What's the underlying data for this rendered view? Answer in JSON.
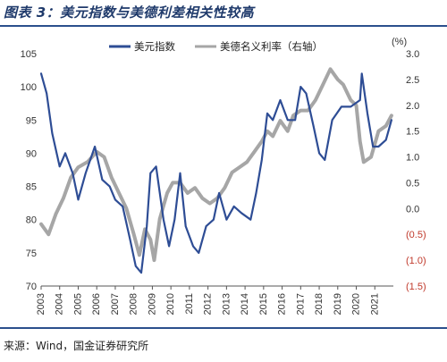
{
  "figure": {
    "title": "图表 3：美元指数与美德利差相关性较高",
    "source": "来源：Wind，国金证券研究所"
  },
  "colors": {
    "usd_index": "#2e4d95",
    "spread": "#a6a6a6",
    "negative_tick": "#c0392b",
    "rule": "#2b4f8c"
  },
  "chart_data": {
    "type": "line",
    "title": "",
    "xlabel": "",
    "ylabel": "",
    "right_unit": "(%)",
    "x_ticks": [
      "2003",
      "2004",
      "2005",
      "2006",
      "2007",
      "2008",
      "2009",
      "2010",
      "2011",
      "2012",
      "2013",
      "2014",
      "2015",
      "2016",
      "2017",
      "2018",
      "2019",
      "2020",
      "2021"
    ],
    "y_left": {
      "lim": [
        70,
        105
      ],
      "ticks": [
        "105",
        "100",
        "95",
        "90",
        "85",
        "80",
        "75",
        "70"
      ]
    },
    "y_right": {
      "lim": [
        -1.5,
        3.0
      ],
      "ticks": [
        "3.0",
        "2.5",
        "2.0",
        "1.5",
        "1.0",
        "0.5",
        "0.0",
        "(0.5)",
        "(1.0)",
        "(1.5)"
      ]
    },
    "grid": false,
    "legend": "top",
    "series": [
      {
        "name": "美元指数",
        "axis": "left",
        "x": [
          2003.0,
          2003.3,
          2003.6,
          2004.0,
          2004.3,
          2004.7,
          2005.0,
          2005.4,
          2005.9,
          2006.3,
          2006.7,
          2007.0,
          2007.4,
          2007.8,
          2008.1,
          2008.4,
          2008.7,
          2008.9,
          2009.2,
          2009.6,
          2009.9,
          2010.2,
          2010.5,
          2010.8,
          2011.2,
          2011.5,
          2011.9,
          2012.3,
          2012.6,
          2013.0,
          2013.4,
          2013.8,
          2014.3,
          2014.6,
          2014.9,
          2015.2,
          2015.5,
          2015.9,
          2016.3,
          2016.7,
          2017.0,
          2017.3,
          2017.7,
          2018.0,
          2018.3,
          2018.7,
          2019.2,
          2019.7,
          2020.2,
          2020.3,
          2020.6,
          2020.9,
          2021.2,
          2021.6,
          2021.9
        ],
        "y": [
          102,
          99,
          93,
          88,
          90,
          87,
          83,
          87,
          91,
          86,
          85,
          83,
          82,
          77,
          73,
          72,
          79,
          87,
          88,
          80,
          76,
          80,
          87,
          79,
          76,
          75,
          79,
          80,
          84,
          80,
          82,
          81,
          80,
          84,
          89,
          96,
          95,
          98,
          95,
          95,
          100,
          99,
          94,
          90,
          89,
          95,
          97,
          97,
          98,
          102,
          96,
          91,
          91,
          92,
          95
        ]
      },
      {
        "name": "美德名义利率（右轴）",
        "axis": "right",
        "x": [
          2003.0,
          2003.4,
          2003.8,
          2004.2,
          2004.6,
          2005.0,
          2005.5,
          2006.0,
          2006.4,
          2006.8,
          2007.2,
          2007.6,
          2008.0,
          2008.3,
          2008.6,
          2008.9,
          2009.1,
          2009.4,
          2009.8,
          2010.1,
          2010.5,
          2010.9,
          2011.3,
          2011.7,
          2012.1,
          2012.5,
          2012.9,
          2013.3,
          2013.7,
          2014.1,
          2014.5,
          2014.9,
          2015.2,
          2015.5,
          2015.9,
          2016.3,
          2016.6,
          2017.0,
          2017.4,
          2017.8,
          2018.2,
          2018.6,
          2019.0,
          2019.3,
          2019.7,
          2020.0,
          2020.2,
          2020.4,
          2020.8,
          2021.2,
          2021.6,
          2021.9
        ],
        "y": [
          -0.3,
          -0.5,
          -0.1,
          0.2,
          0.6,
          0.8,
          0.9,
          1.1,
          1.0,
          0.6,
          0.3,
          0.0,
          -0.5,
          -0.9,
          -0.4,
          -0.6,
          -1.0,
          -0.2,
          0.3,
          0.5,
          0.5,
          0.3,
          0.4,
          0.2,
          0.1,
          0.2,
          0.4,
          0.7,
          0.8,
          0.9,
          1.1,
          1.3,
          1.5,
          1.4,
          1.7,
          1.5,
          1.8,
          1.9,
          1.9,
          2.1,
          2.4,
          2.7,
          2.5,
          2.4,
          2.1,
          2.0,
          1.3,
          0.9,
          1.0,
          1.5,
          1.6,
          1.8
        ]
      }
    ]
  }
}
